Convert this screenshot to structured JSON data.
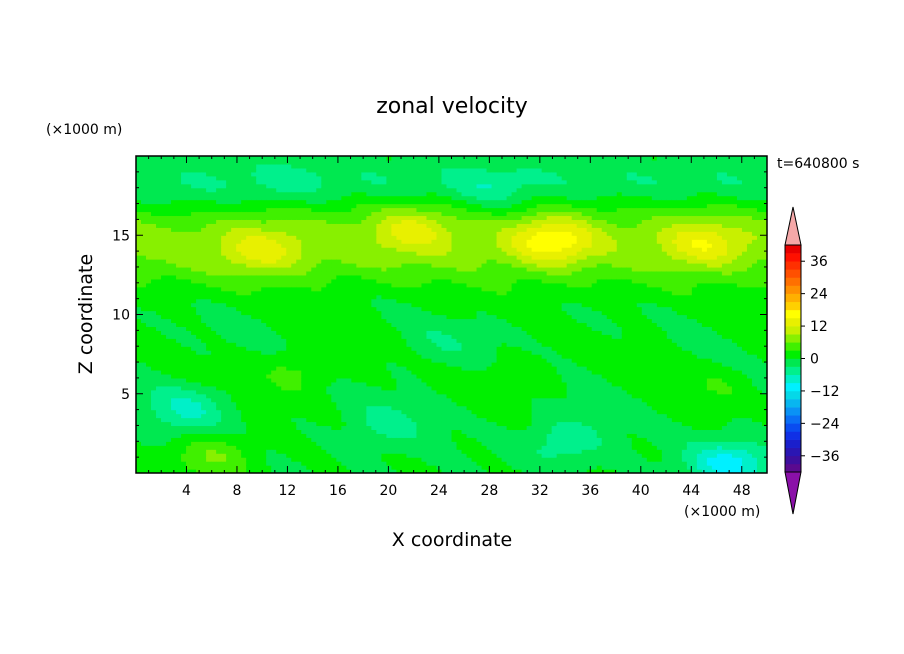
{
  "chart_data": {
    "type": "heatmap",
    "title": "zonal velocity",
    "xlabel": "X coordinate",
    "ylabel": "Z coordinate",
    "x_unit": "(×1000 m)",
    "y_unit": "(×1000 m)",
    "time_label": "t=640800 s",
    "xlim": [
      0,
      50
    ],
    "ylim": [
      0,
      20
    ],
    "x_ticks": [
      4,
      8,
      12,
      16,
      20,
      24,
      28,
      32,
      36,
      40,
      44,
      48
    ],
    "y_ticks": [
      5,
      10,
      15
    ],
    "colorbar": {
      "levels": [
        -42,
        -39,
        -36,
        -33,
        -30,
        -27,
        -24,
        -21,
        -18,
        -15,
        -12,
        -9,
        -6,
        -3,
        0,
        3,
        6,
        9,
        12,
        15,
        18,
        21,
        24,
        27,
        30,
        33,
        36,
        39,
        42
      ],
      "colors": [
        "#5a0a8f",
        "#3d0f9e",
        "#2a16b3",
        "#1a1fcc",
        "#1030e6",
        "#0a4cf0",
        "#0a6ef5",
        "#0a92f5",
        "#08b6f0",
        "#05d8e8",
        "#00f0ff",
        "#00f0c8",
        "#00f08c",
        "#00e850",
        "#00f000",
        "#40f000",
        "#88f000",
        "#c8f000",
        "#e8f000",
        "#ffff00",
        "#ffd000",
        "#ffb000",
        "#ff9000",
        "#ff7000",
        "#ff5000",
        "#ff3000",
        "#ff1000",
        "#e80000"
      ],
      "under_color": "#8a10a8",
      "over_color": "#f5a8a8",
      "tick_labels": [
        "36",
        "24",
        "12",
        "0",
        "−12",
        "−24",
        "−36"
      ],
      "tick_values": [
        36,
        24,
        12,
        0,
        -12,
        -24,
        -36
      ]
    },
    "field_description": "zonal velocity contours; positive band ~10–16 (×1000 m), weak near-zero below 10",
    "features": [
      {
        "x": 33,
        "z": 14.7,
        "value": 14
      },
      {
        "x": 22,
        "z": 15.5,
        "value": 9
      },
      {
        "x": 10,
        "z": 14.0,
        "value": 9
      },
      {
        "x": 45,
        "z": 14.5,
        "value": 10
      },
      {
        "x": 28,
        "z": 17.8,
        "value": -5
      },
      {
        "x": 12,
        "z": 18.5,
        "value": -3
      },
      {
        "x": 4,
        "z": 17.0,
        "value": -2
      },
      {
        "x": 13,
        "z": 6.5,
        "value": 6
      },
      {
        "x": 30,
        "z": 6.0,
        "value": 4
      },
      {
        "x": 46,
        "z": 5.5,
        "value": 4
      },
      {
        "x": 6,
        "z": 1.0,
        "value": 8
      },
      {
        "x": 4,
        "z": 4.0,
        "value": -8
      },
      {
        "x": 20,
        "z": 3.0,
        "value": -5
      },
      {
        "x": 34,
        "z": 2.0,
        "value": -7
      },
      {
        "x": 47,
        "z": 0.6,
        "value": -14
      },
      {
        "x": 24,
        "z": 8.0,
        "value": -3
      },
      {
        "x": 40,
        "z": 8.5,
        "value": 1
      }
    ]
  }
}
